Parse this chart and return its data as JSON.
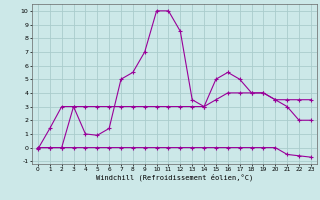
{
  "xlabel": "Windchill (Refroidissement éolien,°C)",
  "background_color": "#cce8e8",
  "grid_color": "#aacccc",
  "line_color": "#990099",
  "xlim": [
    -0.5,
    23.5
  ],
  "ylim": [
    -1.2,
    10.5
  ],
  "xticks": [
    0,
    1,
    2,
    3,
    4,
    5,
    6,
    7,
    8,
    9,
    10,
    11,
    12,
    13,
    14,
    15,
    16,
    17,
    18,
    19,
    20,
    21,
    22,
    23
  ],
  "yticks": [
    -1,
    0,
    1,
    2,
    3,
    4,
    5,
    6,
    7,
    8,
    9,
    10
  ],
  "line1_x": [
    0,
    1,
    2,
    3,
    4,
    5,
    6,
    7,
    8,
    9,
    10,
    11,
    12,
    13,
    14,
    15,
    16,
    17,
    18,
    19,
    20,
    21,
    22,
    23
  ],
  "line1_y": [
    -0.1,
    1.4,
    3.0,
    3.0,
    1.0,
    0.9,
    1.4,
    5.0,
    5.5,
    7.0,
    10.0,
    10.0,
    8.5,
    3.5,
    3.0,
    5.0,
    5.5,
    5.0,
    4.0,
    4.0,
    3.5,
    3.0,
    2.0,
    2.0
  ],
  "line2_x": [
    0,
    1,
    2,
    3,
    4,
    5,
    6,
    7,
    8,
    9,
    10,
    11,
    12,
    13,
    14,
    15,
    16,
    17,
    18,
    19,
    20,
    21,
    22,
    23
  ],
  "line2_y": [
    0.0,
    0.0,
    0.0,
    3.0,
    3.0,
    3.0,
    3.0,
    3.0,
    3.0,
    3.0,
    3.0,
    3.0,
    3.0,
    3.0,
    3.0,
    3.5,
    4.0,
    4.0,
    4.0,
    4.0,
    3.5,
    3.5,
    3.5,
    3.5
  ],
  "line3_x": [
    0,
    1,
    2,
    3,
    4,
    5,
    6,
    7,
    8,
    9,
    10,
    11,
    12,
    13,
    14,
    15,
    16,
    17,
    18,
    19,
    20,
    21,
    22,
    23
  ],
  "line3_y": [
    0.0,
    0.0,
    0.0,
    0.0,
    0.0,
    0.0,
    0.0,
    0.0,
    0.0,
    0.0,
    0.0,
    0.0,
    0.0,
    0.0,
    0.0,
    0.0,
    0.0,
    0.0,
    0.0,
    0.0,
    0.0,
    -0.5,
    -0.6,
    -0.7
  ]
}
